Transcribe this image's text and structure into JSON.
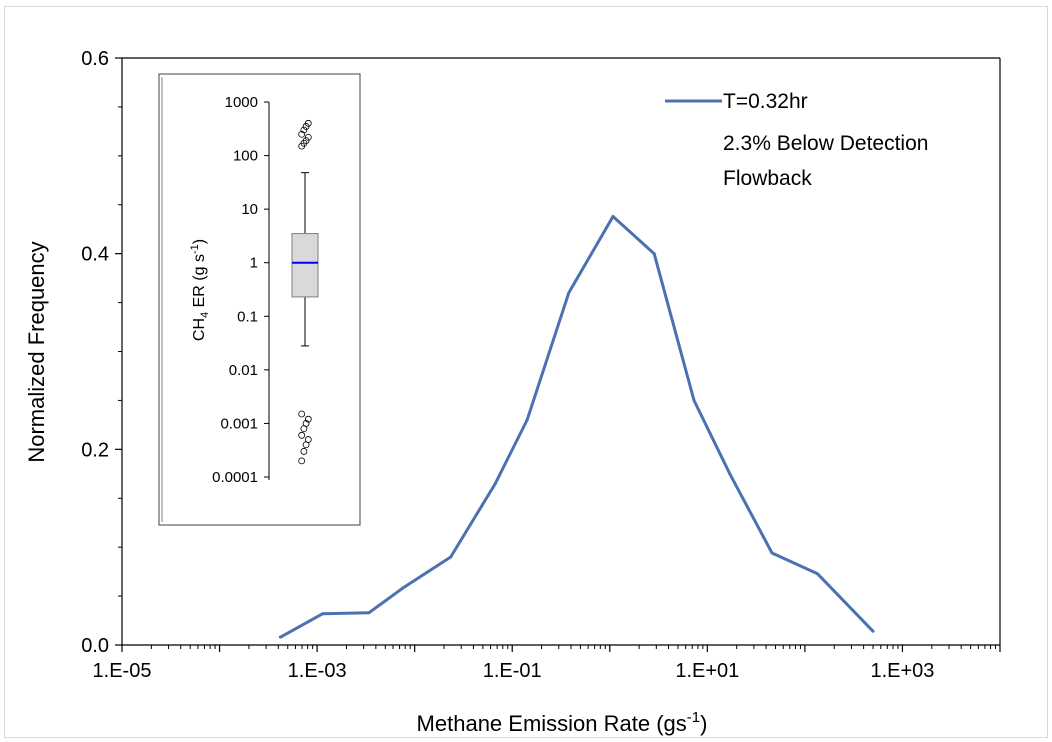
{
  "chart_data": {
    "type": "line",
    "xlabel": "Methane Emission Rate (gs",
    "xlabel_sup": "-1",
    "xlabel_end": ")",
    "ylabel": "Normalized Frequency",
    "x_scale": "log",
    "xlim": [
      1e-05,
      10000
    ],
    "ylim": [
      0,
      0.6
    ],
    "x_tick_labels": [
      "1.E-05",
      "1.E-03",
      "1.E-01",
      "1.E+01",
      "1.E+03"
    ],
    "y_tick_labels": [
      "0.0",
      "0.2",
      "0.4",
      "0.6"
    ],
    "grid": false,
    "legend_position": "top-right",
    "series": [
      {
        "name": "T=0.32hr",
        "color": "#4a72b0",
        "x": [
          0.00042,
          0.00114,
          0.0034,
          0.0075,
          0.0234,
          0.067,
          0.142,
          0.38,
          1.08,
          2.85,
          7.3,
          17,
          46,
          134,
          500
        ],
        "y": [
          0.008,
          0.032,
          0.033,
          0.058,
          0.09,
          0.165,
          0.23,
          0.36,
          0.438,
          0.4,
          0.25,
          0.175,
          0.094,
          0.073,
          0.014
        ]
      }
    ],
    "legend_lines": [
      "T=0.32hr",
      "2.3% Below Detection",
      "Flowback"
    ]
  },
  "inset": {
    "type": "boxplot",
    "ylabel_pre": "CH",
    "ylabel_sub": "4",
    "ylabel_mid": " ER (g s",
    "ylabel_sup": "-1",
    "ylabel_end": ")",
    "y_scale": "log",
    "ylim": [
      0.0001,
      1000
    ],
    "y_tick_labels": [
      "1000",
      "100",
      "10",
      "1",
      "0.1",
      "0.01",
      "0.001",
      "0.0001"
    ],
    "whisker_low": 0.028,
    "q1": 0.23,
    "median": 1.0,
    "q3": 3.5,
    "whisker_high": 48,
    "outliers_high": [
      150,
      170,
      190,
      220,
      250,
      300,
      350,
      400
    ],
    "outliers_low": [
      0.0002,
      0.0003,
      0.0004,
      0.0005,
      0.0006,
      0.0008,
      0.001,
      0.0012,
      0.0015
    ],
    "box_fill": "#d9d9d9",
    "median_color": "#0000ff"
  }
}
